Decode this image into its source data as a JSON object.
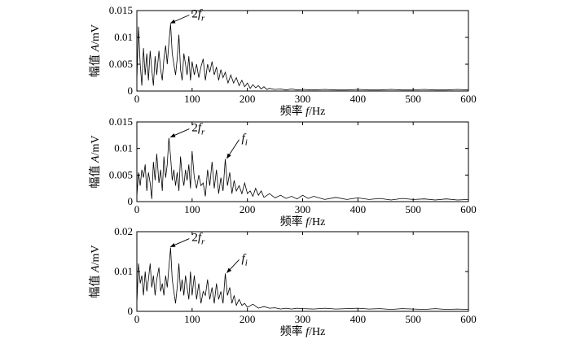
{
  "chart_data": [
    {
      "type": "line",
      "xlabel_prefix": "频率 ",
      "xlabel_var": "f",
      "xlabel_unit": "/Hz",
      "ylabel_prefix": "幅值 ",
      "ylabel_var": "A",
      "ylabel_unit": "/mV",
      "xlim": [
        0,
        600
      ],
      "ylim": [
        0,
        0.015
      ],
      "xticks": [
        0,
        100,
        200,
        300,
        400,
        500,
        600
      ],
      "yticks": [
        0,
        0.005,
        0.01,
        0.015
      ],
      "ytick_labels": [
        "0",
        "0.005",
        "0.01",
        "0.015"
      ],
      "series": [
        {
          "x": [
            0,
            3,
            6,
            9,
            12,
            15,
            18,
            21,
            24,
            27,
            30,
            33,
            36,
            40,
            43,
            46,
            49,
            52,
            55,
            58,
            61,
            64,
            67,
            70,
            73,
            76,
            79,
            82,
            85,
            88,
            91,
            94,
            97,
            100,
            104,
            108,
            112,
            116,
            120,
            124,
            128,
            132,
            136,
            140,
            144,
            148,
            152,
            156,
            160,
            165,
            170,
            175,
            180,
            185,
            190,
            195,
            200,
            205,
            210,
            215,
            220,
            225,
            230,
            235,
            240,
            250,
            260,
            270,
            280,
            290,
            300,
            320,
            340,
            360,
            380,
            400,
            420,
            440,
            460,
            480,
            500,
            520,
            540,
            560,
            580,
            600
          ],
          "y": [
            0.002,
            0.012,
            0.005,
            0.001,
            0.008,
            0.003,
            0.007,
            0.002,
            0.0075,
            0.004,
            0.001,
            0.0065,
            0.003,
            0.0075,
            0.004,
            0.002,
            0.006,
            0.0085,
            0.005,
            0.009,
            0.0125,
            0.007,
            0.005,
            0.003,
            0.006,
            0.0105,
            0.004,
            0.002,
            0.007,
            0.005,
            0.003,
            0.0065,
            0.002,
            0.0055,
            0.003,
            0.005,
            0.0025,
            0.0045,
            0.006,
            0.002,
            0.005,
            0.0035,
            0.0055,
            0.003,
            0.0045,
            0.002,
            0.004,
            0.0025,
            0.0035,
            0.0015,
            0.003,
            0.0015,
            0.0025,
            0.001,
            0.002,
            0.0008,
            0.0015,
            0.0005,
            0.0012,
            0.0006,
            0.001,
            0.0004,
            0.0008,
            0.0003,
            0.0005,
            0.0003,
            0.0004,
            0.0002,
            0.0004,
            0.0002,
            0.0003,
            0.0002,
            0.0003,
            0.0002,
            0.0002,
            0.0003,
            0.0002,
            0.0002,
            0.0003,
            0.0002,
            0.0002,
            0.0003,
            0.0002,
            0.0002,
            0.0003,
            0.0002
          ]
        }
      ],
      "annotations": [
        {
          "base": "2",
          "var": "f",
          "sub": "r",
          "x": 58,
          "y": 0.0125
        }
      ]
    },
    {
      "type": "line",
      "xlabel_prefix": "频率 ",
      "xlabel_var": "f",
      "xlabel_unit": "/Hz",
      "ylabel_prefix": "幅值 ",
      "ylabel_var": "A",
      "ylabel_unit": "/mV",
      "xlim": [
        0,
        600
      ],
      "ylim": [
        0,
        0.015
      ],
      "xticks": [
        0,
        100,
        200,
        300,
        400,
        500,
        600
      ],
      "yticks": [
        0,
        0.005,
        0.01,
        0.015
      ],
      "ytick_labels": [
        "0",
        "0.005",
        "0.01",
        "0.015"
      ],
      "series": [
        {
          "x": [
            0,
            3,
            6,
            9,
            12,
            15,
            18,
            21,
            24,
            27,
            30,
            33,
            36,
            40,
            43,
            46,
            49,
            52,
            55,
            58,
            61,
            64,
            67,
            70,
            73,
            76,
            79,
            82,
            85,
            88,
            91,
            94,
            97,
            100,
            104,
            108,
            112,
            116,
            120,
            124,
            128,
            132,
            136,
            140,
            144,
            148,
            152,
            156,
            160,
            164,
            168,
            172,
            176,
            180,
            185,
            190,
            195,
            200,
            205,
            210,
            215,
            220,
            225,
            230,
            240,
            250,
            260,
            270,
            280,
            290,
            300,
            310,
            320,
            340,
            360,
            380,
            400,
            420,
            440,
            460,
            480,
            500,
            520,
            540,
            560,
            580,
            600
          ],
          "y": [
            0.001,
            0.0055,
            0.003,
            0.006,
            0.0045,
            0.007,
            0.002,
            0.0055,
            0.0035,
            0.0005,
            0.0075,
            0.004,
            0.009,
            0.0035,
            0.006,
            0.002,
            0.0085,
            0.0045,
            0.007,
            0.012,
            0.0085,
            0.004,
            0.006,
            0.003,
            0.0055,
            0.002,
            0.0085,
            0.005,
            0.003,
            0.006,
            0.004,
            0.007,
            0.0025,
            0.0095,
            0.0045,
            0.0025,
            0.005,
            0.003,
            0.0035,
            0.001,
            0.006,
            0.003,
            0.0075,
            0.0025,
            0.006,
            0.0015,
            0.0045,
            0.002,
            0.008,
            0.003,
            0.0055,
            0.0015,
            0.004,
            0.002,
            0.003,
            0.0015,
            0.0035,
            0.0015,
            0.002,
            0.001,
            0.0025,
            0.0012,
            0.002,
            0.0008,
            0.0015,
            0.0007,
            0.0012,
            0.0006,
            0.001,
            0.0005,
            0.0012,
            0.0006,
            0.001,
            0.0004,
            0.0008,
            0.0004,
            0.0007,
            0.0004,
            0.0006,
            0.0003,
            0.0006,
            0.0004,
            0.0005,
            0.0003,
            0.0005,
            0.0003,
            0.0004
          ]
        }
      ],
      "annotations": [
        {
          "base": "2",
          "var": "f",
          "sub": "r",
          "x": 58,
          "y": 0.012
        },
        {
          "base": "",
          "var": "f",
          "sub": "i",
          "x": 160,
          "y": 0.008
        }
      ]
    },
    {
      "type": "line",
      "xlabel_prefix": "频率 ",
      "xlabel_var": "f",
      "xlabel_unit": "/Hz",
      "ylabel_prefix": "幅值 ",
      "ylabel_var": "A",
      "ylabel_unit": "/mV",
      "xlim": [
        0,
        600
      ],
      "ylim": [
        0,
        0.02
      ],
      "xticks": [
        0,
        100,
        200,
        300,
        400,
        500,
        600
      ],
      "yticks": [
        0,
        0.01,
        0.02
      ],
      "ytick_labels": [
        "0",
        "0.01",
        "0.02"
      ],
      "series": [
        {
          "x": [
            0,
            3,
            6,
            9,
            12,
            15,
            18,
            21,
            24,
            27,
            30,
            33,
            36,
            40,
            43,
            46,
            49,
            52,
            55,
            58,
            61,
            64,
            67,
            70,
            73,
            76,
            79,
            82,
            85,
            88,
            91,
            94,
            97,
            100,
            104,
            108,
            112,
            116,
            120,
            124,
            128,
            132,
            136,
            140,
            144,
            148,
            152,
            156,
            160,
            164,
            168,
            172,
            176,
            180,
            185,
            190,
            195,
            200,
            210,
            220,
            230,
            240,
            250,
            260,
            270,
            280,
            290,
            300,
            320,
            340,
            360,
            380,
            400,
            420,
            440,
            460,
            480,
            500,
            520,
            540,
            560,
            580,
            600
          ],
          "y": [
            0.002,
            0.012,
            0.007,
            0.009,
            0.004,
            0.01,
            0.005,
            0.008,
            0.012,
            0.006,
            0.009,
            0.004,
            0.008,
            0.011,
            0.005,
            0.007,
            0.004,
            0.009,
            0.006,
            0.011,
            0.016,
            0.008,
            0.005,
            0.002,
            0.006,
            0.012,
            0.005,
            0.008,
            0.004,
            0.009,
            0.006,
            0.003,
            0.01,
            0.004,
            0.009,
            0.003,
            0.007,
            0.002,
            0.005,
            0.004,
            0.008,
            0.003,
            0.006,
            0.002,
            0.007,
            0.003,
            0.005,
            0.002,
            0.0095,
            0.004,
            0.006,
            0.002,
            0.004,
            0.0015,
            0.003,
            0.0015,
            0.002,
            0.001,
            0.0018,
            0.0008,
            0.0012,
            0.0008,
            0.0009,
            0.0006,
            0.0008,
            0.0006,
            0.0008,
            0.0007,
            0.0006,
            0.0008,
            0.0006,
            0.0007,
            0.0008,
            0.0006,
            0.0007,
            0.0005,
            0.0007,
            0.0006,
            0.0005,
            0.0007,
            0.0005,
            0.0006,
            0.0005
          ]
        }
      ],
      "annotations": [
        {
          "base": "2",
          "var": "f",
          "sub": "r",
          "x": 58,
          "y": 0.016
        },
        {
          "base": "",
          "var": "f",
          "sub": "i",
          "x": 160,
          "y": 0.0095
        }
      ]
    }
  ]
}
